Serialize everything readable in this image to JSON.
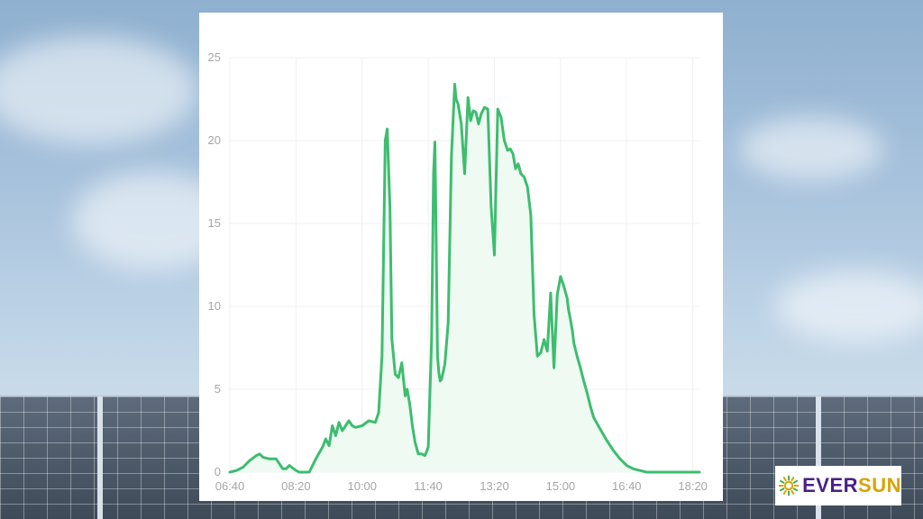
{
  "brand": {
    "name_part1": "EVER",
    "name_part2": "SUN",
    "icon": "sun-icon",
    "colors": {
      "purple": "#4a1f86",
      "gold": "#d9a300",
      "green": "#3fae49"
    }
  },
  "chart_data": {
    "type": "area",
    "title": "",
    "xlabel": "",
    "ylabel": "",
    "xlim": [
      "06:40",
      "18:30"
    ],
    "ylim": [
      0,
      25
    ],
    "grid": true,
    "line_color": "#3dbd6f",
    "fill_color": "#eefaf2",
    "x_ticks": [
      "06:40",
      "08:20",
      "10:00",
      "11:40",
      "13:20",
      "15:00",
      "16:40",
      "18:20"
    ],
    "y_ticks": [
      0,
      5,
      10,
      15,
      20,
      25
    ],
    "series": [
      {
        "x": [
          "06:40",
          "06:50",
          "07:00",
          "07:10",
          "07:20",
          "07:25",
          "07:30",
          "07:40",
          "07:50",
          "08:00",
          "08:05",
          "08:10",
          "08:20",
          "08:25",
          "08:30",
          "08:40",
          "08:50",
          "09:00",
          "09:05",
          "09:10",
          "09:15",
          "09:20",
          "09:25",
          "09:30",
          "09:35",
          "09:40",
          "09:45",
          "09:50",
          "10:00",
          "10:10",
          "10:20",
          "10:25",
          "10:30",
          "10:35",
          "10:38",
          "10:42",
          "10:45",
          "10:50",
          "10:55",
          "11:00",
          "11:05",
          "11:08",
          "11:12",
          "11:16",
          "11:20",
          "11:25",
          "11:30",
          "11:35",
          "11:40",
          "11:45",
          "11:48",
          "11:50",
          "11:52",
          "11:54",
          "11:56",
          "11:58",
          "12:00",
          "12:05",
          "12:10",
          "12:15",
          "12:20",
          "12:22",
          "12:25",
          "12:30",
          "12:35",
          "12:40",
          "12:44",
          "12:48",
          "12:52",
          "12:56",
          "13:00",
          "13:05",
          "13:10",
          "13:15",
          "13:20",
          "13:25",
          "13:30",
          "13:35",
          "13:40",
          "13:44",
          "13:48",
          "13:52",
          "13:56",
          "14:00",
          "14:05",
          "14:10",
          "14:15",
          "14:20",
          "14:25",
          "14:30",
          "14:35",
          "14:40",
          "14:45",
          "14:50",
          "14:55",
          "15:00",
          "15:05",
          "15:10",
          "15:12",
          "15:15",
          "15:18",
          "15:20",
          "15:25",
          "15:30",
          "15:35",
          "15:40",
          "15:45",
          "15:50",
          "16:00",
          "16:10",
          "16:20",
          "16:30",
          "16:40",
          "16:50",
          "17:00",
          "17:10",
          "17:20",
          "17:30",
          "17:40",
          "17:50",
          "18:00",
          "18:10",
          "18:20",
          "18:30"
        ],
        "y": [
          0,
          0.1,
          0.3,
          0.7,
          1.0,
          1.1,
          0.9,
          0.8,
          0.8,
          0.2,
          0.2,
          0.4,
          0.1,
          0.0,
          0.0,
          0.0,
          0.8,
          1.5,
          2.0,
          1.6,
          2.8,
          2.2,
          3.0,
          2.5,
          2.8,
          3.1,
          2.8,
          2.7,
          2.8,
          3.1,
          3.0,
          3.6,
          7.0,
          20.0,
          20.7,
          16.0,
          8.0,
          5.9,
          5.7,
          6.6,
          4.6,
          5.0,
          4.1,
          2.8,
          1.8,
          1.1,
          1.1,
          1.0,
          1.5,
          8.0,
          18.0,
          19.9,
          14.0,
          7.0,
          6.0,
          5.5,
          5.6,
          6.5,
          9.0,
          19.0,
          23.4,
          22.5,
          22.2,
          21.0,
          18.0,
          22.6,
          21.2,
          21.8,
          21.7,
          21.0,
          21.6,
          22.0,
          21.9,
          16.0,
          13.1,
          21.9,
          21.4,
          20.0,
          19.4,
          19.5,
          19.2,
          18.3,
          18.6,
          18.0,
          17.8,
          17.2,
          15.5,
          9.5,
          7.0,
          7.2,
          8.0,
          7.3,
          10.8,
          6.3,
          10.7,
          11.8,
          11.2,
          10.5,
          9.8,
          9.2,
          8.5,
          7.8,
          7.0,
          6.3,
          5.5,
          4.8,
          4.0,
          3.3,
          2.6,
          1.9,
          1.3,
          0.8,
          0.4,
          0.2,
          0.1,
          0,
          0,
          0,
          0,
          0,
          0,
          0,
          0,
          0
        ]
      }
    ]
  }
}
